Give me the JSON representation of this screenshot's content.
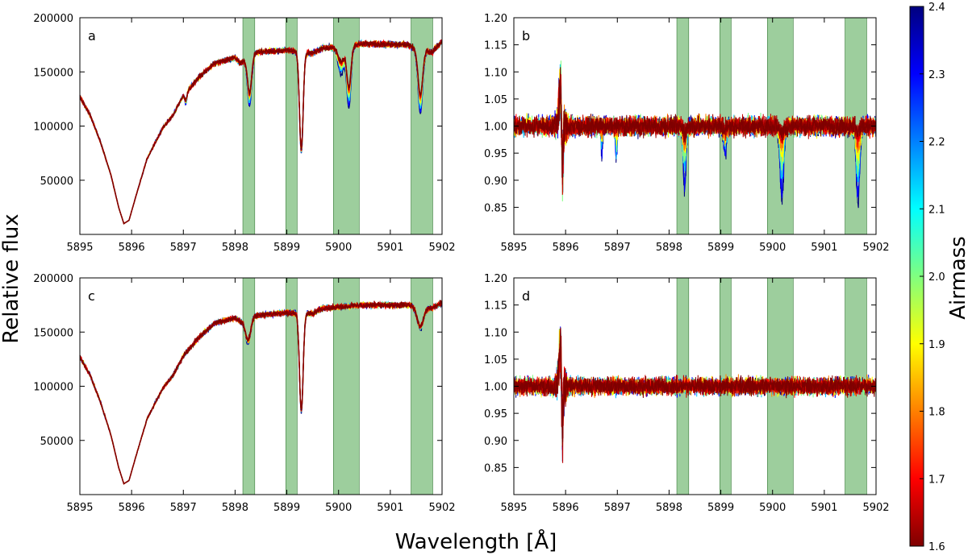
{
  "figure": {
    "ylabel": "Relative flux",
    "xlabel": "Wavelength [Å]",
    "colorbar": {
      "label": "Airmass",
      "min": 1.6,
      "max": 2.4,
      "ticks": [
        "1.6",
        "1.7",
        "1.8",
        "1.9",
        "2.0",
        "2.1",
        "2.2",
        "2.3",
        "2.4"
      ],
      "colors": [
        "#7f0000",
        "#ff0000",
        "#ff8000",
        "#ffff00",
        "#80ff80",
        "#00ffff",
        "#0080ff",
        "#0000ff",
        "#00007f"
      ]
    },
    "telluric_color": "#4ca64c"
  },
  "chart_data": [
    {
      "type": "line",
      "panel": "a",
      "title": "",
      "xlabel": "",
      "ylabel": "",
      "xlim": [
        5895,
        5902
      ],
      "ylim": [
        0,
        200000
      ],
      "xticks": [
        "5895",
        "5896",
        "5897",
        "5898",
        "5899",
        "5900",
        "5901",
        "5902"
      ],
      "yticks": [
        "50000",
        "100000",
        "150000",
        "200000"
      ],
      "ytick_values": [
        50000,
        100000,
        150000,
        200000
      ],
      "shaded_bands": [
        [
          5898.15,
          5898.38
        ],
        [
          5898.98,
          5899.2
        ],
        [
          5899.9,
          5900.4
        ],
        [
          5901.4,
          5901.82
        ]
      ],
      "continuum": [
        [
          5895.0,
          127000
        ],
        [
          5895.2,
          110000
        ],
        [
          5895.4,
          85000
        ],
        [
          5895.6,
          55000
        ],
        [
          5895.75,
          25000
        ],
        [
          5895.85,
          10000
        ],
        [
          5895.95,
          13000
        ],
        [
          5896.1,
          38000
        ],
        [
          5896.3,
          70000
        ],
        [
          5896.6,
          98000
        ],
        [
          5896.8,
          110000
        ],
        [
          5897.0,
          128000
        ],
        [
          5897.3,
          145000
        ],
        [
          5897.6,
          158000
        ],
        [
          5898.0,
          163000
        ],
        [
          5898.1,
          158000
        ],
        [
          5898.4,
          168000
        ],
        [
          5899.0,
          170000
        ],
        [
          5899.5,
          167000
        ],
        [
          5899.7,
          172000
        ],
        [
          5900.5,
          176000
        ],
        [
          5901.3,
          175000
        ],
        [
          5901.8,
          168000
        ],
        [
          5902.0,
          178000
        ]
      ],
      "lines": [
        {
          "center": 5898.28,
          "width": 0.04,
          "depth_low": 33000,
          "depth_high": 46000
        },
        {
          "center": 5899.28,
          "width": 0.035,
          "depth_low": 90000,
          "depth_high": 94000
        },
        {
          "center": 5900.05,
          "width": 0.06,
          "depth_low": 14000,
          "depth_high": 26000
        },
        {
          "center": 5900.2,
          "width": 0.04,
          "depth_low": 38000,
          "depth_high": 57000
        },
        {
          "center": 5901.58,
          "width": 0.045,
          "depth_low": 42000,
          "depth_high": 60000
        },
        {
          "center": 5897.05,
          "width": 0.02,
          "depth_low": 7000,
          "depth_high": 11000
        }
      ]
    },
    {
      "type": "line",
      "panel": "b",
      "title": "",
      "xlabel": "",
      "ylabel": "",
      "xlim": [
        5895,
        5902
      ],
      "ylim": [
        0.8,
        1.2
      ],
      "xticks": [
        "5895",
        "5896",
        "5897",
        "5898",
        "5899",
        "5900",
        "5901",
        "5902"
      ],
      "yticks": [
        "0.85",
        "0.90",
        "0.95",
        "1.00",
        "1.05",
        "1.10",
        "1.15",
        "1.20"
      ],
      "ytick_values": [
        0.85,
        0.9,
        0.95,
        1.0,
        1.05,
        1.1,
        1.15,
        1.2
      ],
      "shaded_bands": [
        [
          5898.15,
          5898.38
        ],
        [
          5898.98,
          5899.2
        ],
        [
          5899.9,
          5900.4
        ],
        [
          5901.4,
          5901.82
        ]
      ],
      "continuum": [
        [
          5895.0,
          1.0
        ],
        [
          5902.0,
          1.0
        ]
      ],
      "noise": 0.022,
      "core_feature": {
        "center": 5895.92,
        "up": 0.1,
        "down": 0.13
      },
      "lines": [
        {
          "center": 5898.3,
          "width": 0.03,
          "depth_low": 0.01,
          "depth_high": 0.115
        },
        {
          "center": 5899.08,
          "width": 0.03,
          "depth_low": 0.005,
          "depth_high": 0.05
        },
        {
          "center": 5900.18,
          "width": 0.035,
          "depth_low": 0.01,
          "depth_high": 0.135
        },
        {
          "center": 5901.65,
          "width": 0.035,
          "depth_low": 0.01,
          "depth_high": 0.14
        },
        {
          "center": 5896.7,
          "width": 0.015,
          "depth_low": 0.0,
          "depth_high": 0.05
        },
        {
          "center": 5896.98,
          "width": 0.015,
          "depth_low": 0.0,
          "depth_high": 0.06
        }
      ]
    },
    {
      "type": "line",
      "panel": "c",
      "title": "",
      "xlabel": "",
      "ylabel": "",
      "xlim": [
        5895,
        5902
      ],
      "ylim": [
        0,
        200000
      ],
      "xticks": [
        "5895",
        "5896",
        "5897",
        "5898",
        "5899",
        "5900",
        "5901",
        "5902"
      ],
      "yticks": [
        "50000",
        "100000",
        "150000",
        "200000"
      ],
      "ytick_values": [
        50000,
        100000,
        150000,
        200000
      ],
      "shaded_bands": [
        [
          5898.15,
          5898.38
        ],
        [
          5898.98,
          5899.2
        ],
        [
          5899.9,
          5900.4
        ],
        [
          5901.4,
          5901.82
        ]
      ],
      "continuum": [
        [
          5895.0,
          127000
        ],
        [
          5895.2,
          110000
        ],
        [
          5895.4,
          85000
        ],
        [
          5895.6,
          55000
        ],
        [
          5895.75,
          25000
        ],
        [
          5895.85,
          10000
        ],
        [
          5895.95,
          13000
        ],
        [
          5896.1,
          38000
        ],
        [
          5896.3,
          70000
        ],
        [
          5896.6,
          98000
        ],
        [
          5896.8,
          110000
        ],
        [
          5897.0,
          128000
        ],
        [
          5897.3,
          145000
        ],
        [
          5897.6,
          158000
        ],
        [
          5898.0,
          163000
        ],
        [
          5898.1,
          160000
        ],
        [
          5898.4,
          165000
        ],
        [
          5899.0,
          168000
        ],
        [
          5899.5,
          167000
        ],
        [
          5899.7,
          172000
        ],
        [
          5900.5,
          175000
        ],
        [
          5901.3,
          175000
        ],
        [
          5901.8,
          172000
        ],
        [
          5902.0,
          177000
        ]
      ],
      "lines": [
        {
          "center": 5898.25,
          "width": 0.05,
          "depth_low": 20000,
          "depth_high": 23000
        },
        {
          "center": 5899.28,
          "width": 0.035,
          "depth_low": 90000,
          "depth_high": 92000
        },
        {
          "center": 5901.58,
          "width": 0.06,
          "depth_low": 18000,
          "depth_high": 21000
        }
      ]
    },
    {
      "type": "line",
      "panel": "d",
      "title": "",
      "xlabel": "",
      "ylabel": "",
      "xlim": [
        5895,
        5902
      ],
      "ylim": [
        0.8,
        1.2
      ],
      "xticks": [
        "5895",
        "5896",
        "5897",
        "5898",
        "5899",
        "5900",
        "5901",
        "5902"
      ],
      "yticks": [
        "0.85",
        "0.90",
        "0.95",
        "1.00",
        "1.05",
        "1.10",
        "1.15",
        "1.20"
      ],
      "ytick_values": [
        0.85,
        0.9,
        0.95,
        1.0,
        1.05,
        1.1,
        1.15,
        1.2
      ],
      "shaded_bands": [
        [
          5898.15,
          5898.38
        ],
        [
          5898.98,
          5899.2
        ],
        [
          5899.9,
          5900.4
        ],
        [
          5901.4,
          5901.82
        ]
      ],
      "continuum": [
        [
          5895.0,
          1.0
        ],
        [
          5902.0,
          1.0
        ]
      ],
      "noise": 0.02,
      "core_feature": {
        "center": 5895.92,
        "up": 0.1,
        "down": 0.13
      },
      "lines": []
    }
  ]
}
